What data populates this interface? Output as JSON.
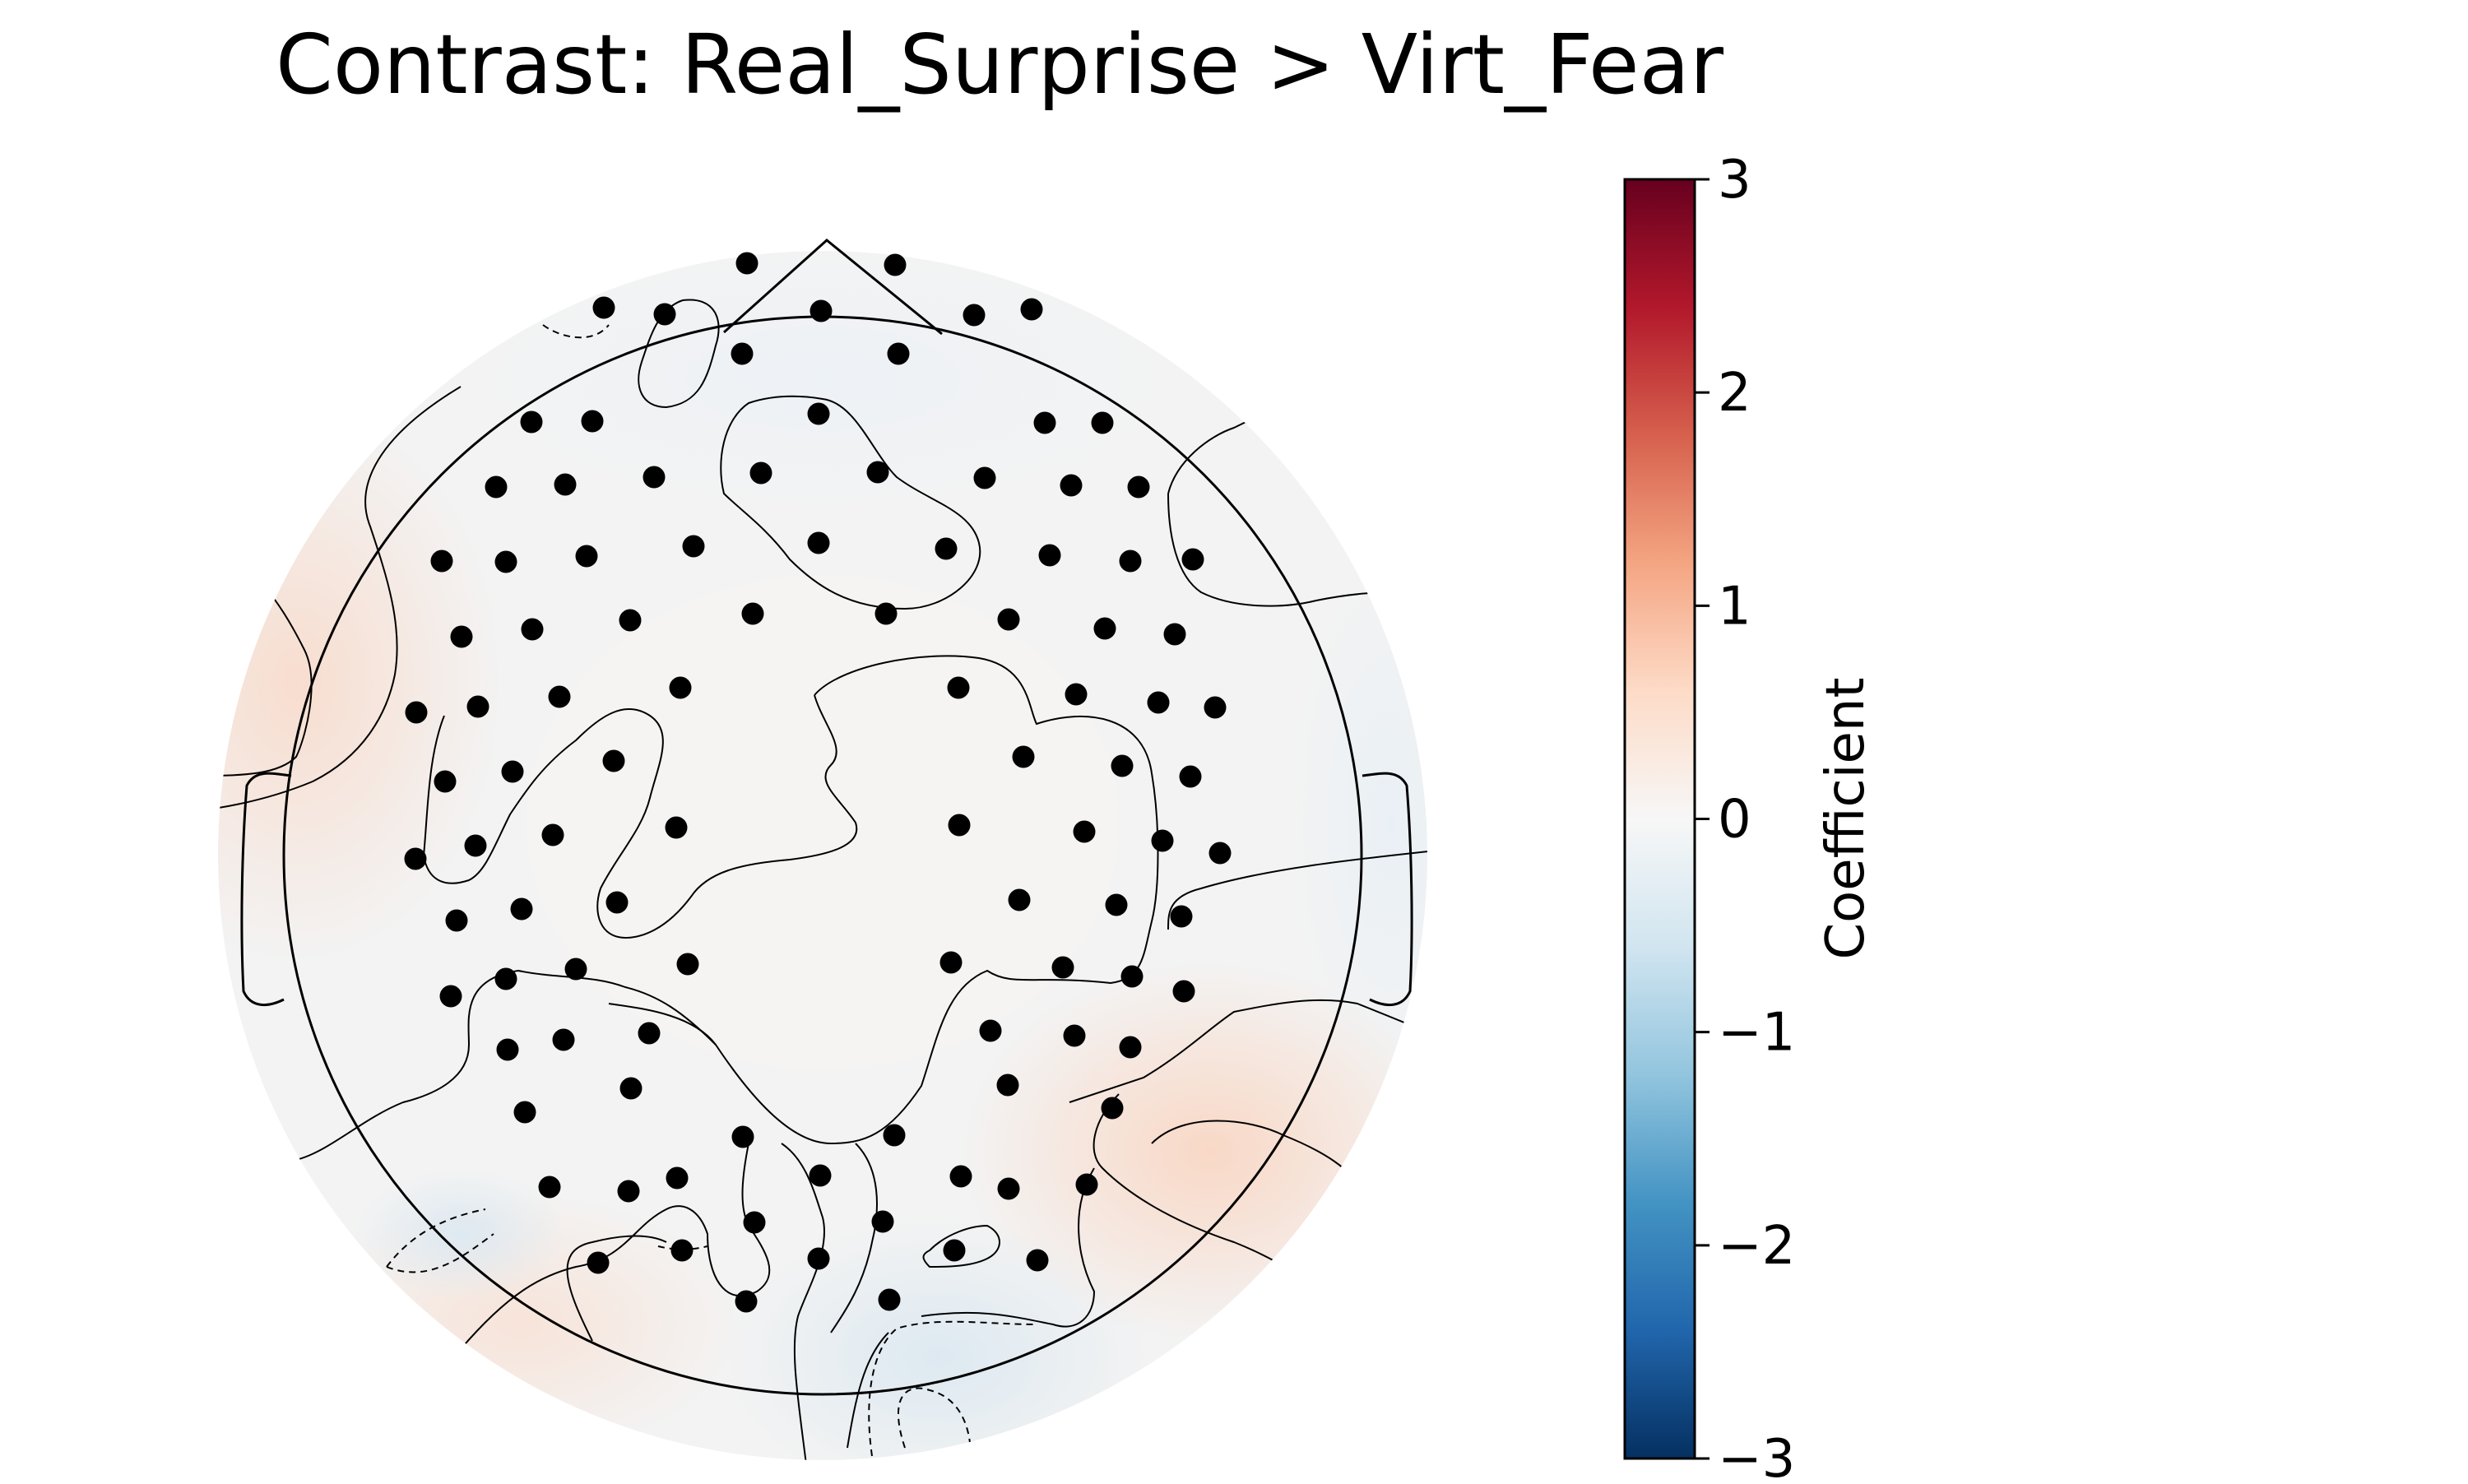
{
  "chart_data": {
    "type": "topomap",
    "title": "Contrast: Real_Surprise > Virt_Fear",
    "colorbar": {
      "label": "Coefficient",
      "vmin": -3,
      "vmax": 3,
      "ticks": [
        3,
        2,
        1,
        0,
        -1,
        -2,
        -3
      ],
      "tick_labels": [
        "3",
        "2",
        "1",
        "0",
        "−1",
        "−2",
        "−3"
      ],
      "colormap": "RdBu_r",
      "stops": [
        "#053061",
        "#2166ac",
        "#4393c3",
        "#92c5de",
        "#d1e5f0",
        "#f7f7f7",
        "#fddbc7",
        "#f4a582",
        "#d6604d",
        "#b2182b",
        "#67001f"
      ]
    },
    "overlay_color": "#000000",
    "sensor_count": 128,
    "value_range_observed": [
      -0.3,
      0.6
    ],
    "positive_regions": [
      "left-temporal",
      "right-posterior-temporal",
      "left-posterior"
    ],
    "negative_regions": [
      "occipital",
      "right-temporal"
    ]
  }
}
